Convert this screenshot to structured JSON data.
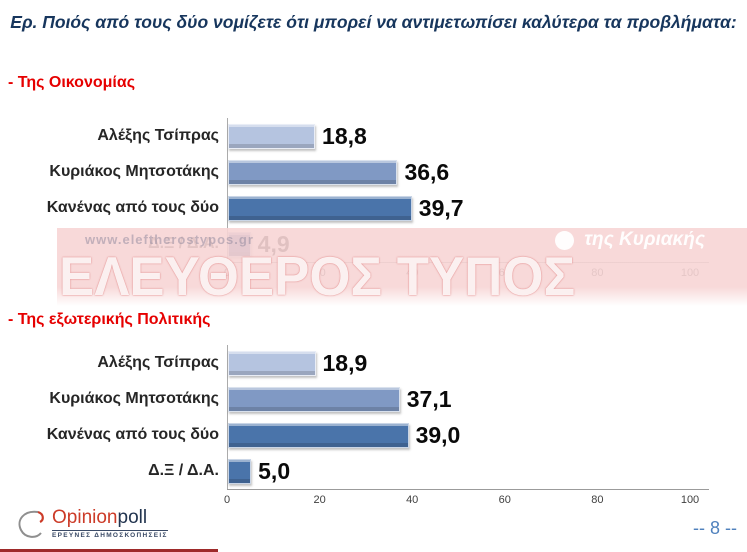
{
  "title": "Ερ. Ποιός από τους δύο νομίζετε ότι μπορεί να αντιμετωπίσει καλύτερα τα προβλήματα:",
  "page_number": "-- 8 --",
  "watermark": {
    "url_text": "www.eleftherostypos.gr",
    "brand_main": "ΕΛΕΥΘΕΡΟΣ ΤΥΠΟΣ",
    "brand_sub": "της Κυριακής",
    "band_color": "#f7d5d5"
  },
  "logo": {
    "name_part1": "Opinion",
    "name_part2": "poll",
    "tagline": "ΕΡΕΥΝΕΣ ΔΗΜΟΣΚΟΠΗΣΕΙΣ"
  },
  "colors": {
    "title_text": "#17365d",
    "section_header": "#e60000",
    "value_label": "#0a0a0a",
    "axis_line": "#9b9b9b",
    "page_number": "#4f81bd"
  },
  "chart_data": [
    {
      "type": "bar",
      "orientation": "horizontal",
      "section_label": "- Της Οικονομίας",
      "categories": [
        "Αλέξης Τσίπρας",
        "Κυριάκος Μητσοτάκης",
        "Κανένας από τους δύο",
        "Δ.Ξ / Δ.Α."
      ],
      "values": [
        18.8,
        36.6,
        39.7,
        4.9
      ],
      "value_labels": [
        "18,8",
        "36,6",
        "39,7",
        "4,9"
      ],
      "bar_colors": [
        "#b5c4e0",
        "#8099c4",
        "#4a74aa",
        "#41599b"
      ],
      "xlim": [
        0,
        100
      ],
      "x_ticks": [
        "0",
        "20",
        "40",
        "60",
        "80",
        "100"
      ],
      "grid": false,
      "legend": "none"
    },
    {
      "type": "bar",
      "orientation": "horizontal",
      "section_label": "- Της εξωτερικής Πολιτικής",
      "categories": [
        "Αλέξης Τσίπρας",
        "Κυριάκος Μητσοτάκης",
        "Κανένας από τους δύο",
        "Δ.Ξ / Δ.Α."
      ],
      "values": [
        18.9,
        37.1,
        39.0,
        5.0
      ],
      "value_labels": [
        "18,9",
        "37,1",
        "39,0",
        "5,0"
      ],
      "bar_colors": [
        "#b5c4e0",
        "#8099c4",
        "#4a74aa",
        "#4a74aa"
      ],
      "xlim": [
        0,
        100
      ],
      "x_ticks": [
        "0",
        "20",
        "40",
        "60",
        "80",
        "100"
      ],
      "grid": false,
      "legend": "none"
    }
  ]
}
